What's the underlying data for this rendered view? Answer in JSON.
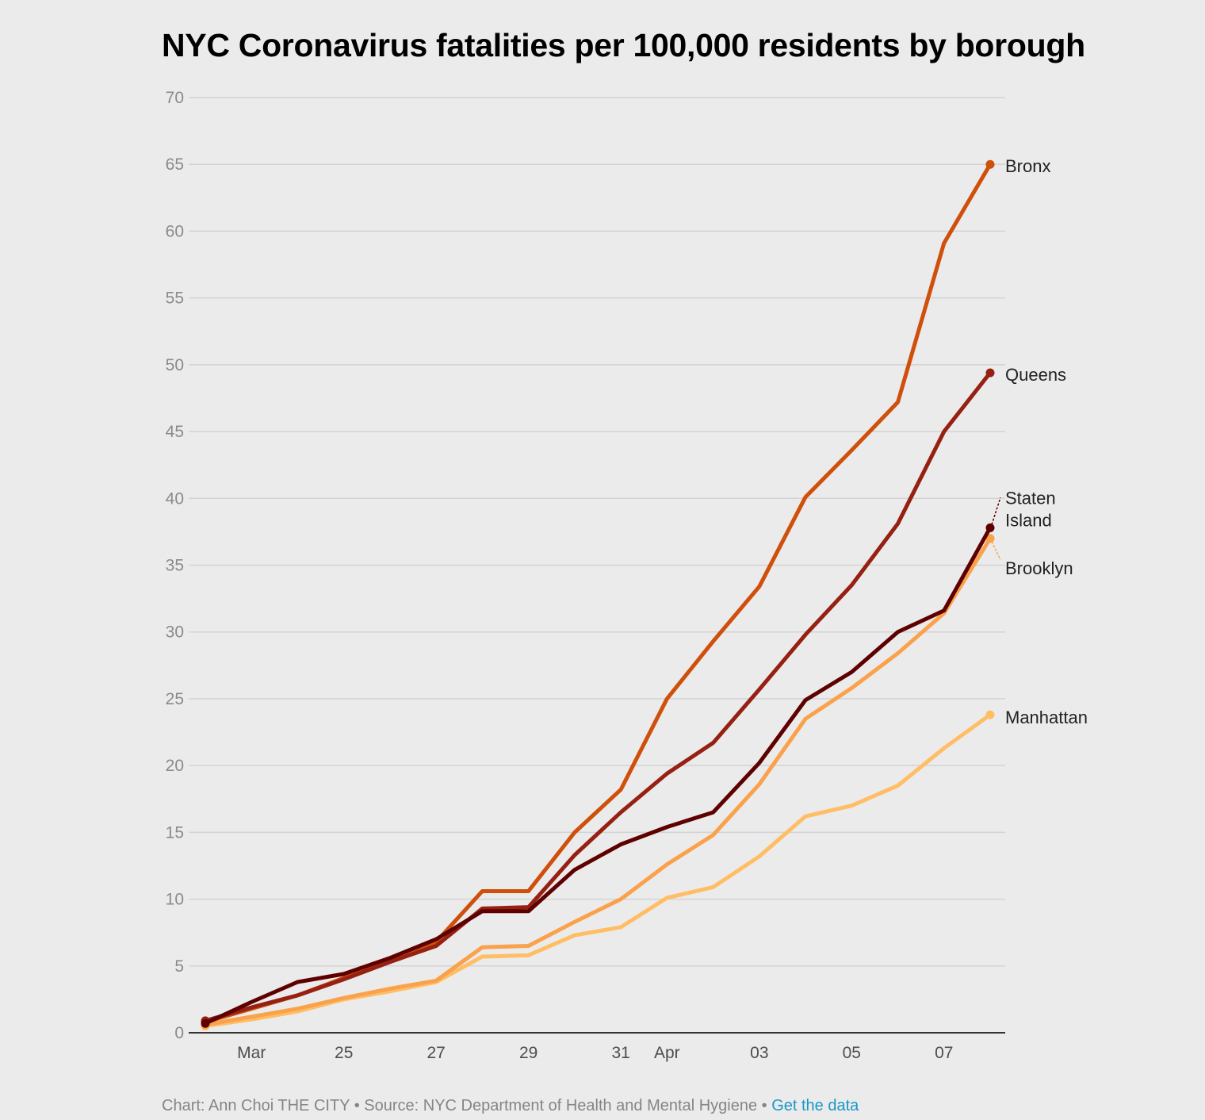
{
  "title": "NYC Coronavirus fatalities per 100,000 residents by borough",
  "footer": {
    "credit": "Chart: Ann Choi THE CITY",
    "separator": " • ",
    "source": "Source: NYC Department of Health and Mental Hygiene",
    "link_label": "Get the data"
  },
  "colors": {
    "Bronx": "#cf4f0b",
    "Queens": "#962012",
    "Staten Island": "#5e0000",
    "Brooklyn": "#faa24b",
    "Manhattan": "#ffbe66",
    "grid": "#d3d3d3",
    "axis": "#333333",
    "tick_label": "#8a8a8a",
    "link": "#1a98c6"
  },
  "chart_data": {
    "type": "line",
    "title": "NYC Coronavirus fatalities per 100,000 residents by borough",
    "xlabel": "",
    "ylabel": "",
    "ylim": [
      0,
      70
    ],
    "y_ticks": [
      0,
      5,
      10,
      15,
      20,
      25,
      30,
      35,
      40,
      45,
      50,
      55,
      60,
      65,
      70
    ],
    "x": [
      "Mar 22",
      "Mar 23",
      "Mar 24",
      "Mar 25",
      "Mar 26",
      "Mar 27",
      "Mar 28",
      "Mar 29",
      "Mar 30",
      "Mar 31",
      "Apr 1",
      "Apr 2",
      "Apr 3",
      "Apr 4",
      "Apr 5",
      "Apr 6",
      "Apr 7",
      "Apr 8"
    ],
    "x_tick_labels": [
      {
        "x": "Mar 23",
        "label": "Mar"
      },
      {
        "x": "Mar 25",
        "label": "25"
      },
      {
        "x": "Mar 27",
        "label": "27"
      },
      {
        "x": "Mar 29",
        "label": "29"
      },
      {
        "x": "Mar 31",
        "label": "31"
      },
      {
        "x": "Apr 1",
        "label": "Apr"
      },
      {
        "x": "Apr 3",
        "label": "03"
      },
      {
        "x": "Apr 5",
        "label": "05"
      },
      {
        "x": "Apr 7",
        "label": "07"
      }
    ],
    "grid": true,
    "legend": "direct labels at line ends",
    "series": [
      {
        "name": "Bronx",
        "values": [
          0.8,
          1.8,
          2.8,
          4.1,
          5.5,
          6.8,
          10.6,
          10.6,
          15.0,
          18.2,
          25.0,
          29.3,
          33.4,
          40.1,
          43.6,
          47.2,
          59.1,
          65.0
        ]
      },
      {
        "name": "Queens",
        "values": [
          0.9,
          1.9,
          2.8,
          4.0,
          5.3,
          6.5,
          9.3,
          9.4,
          13.3,
          16.5,
          19.4,
          21.7,
          25.7,
          29.8,
          33.5,
          38.1,
          45.0,
          49.4
        ]
      },
      {
        "name": "Brooklyn",
        "values": [
          0.6,
          1.2,
          1.8,
          2.6,
          3.3,
          3.9,
          6.4,
          6.5,
          8.3,
          10.0,
          12.6,
          14.8,
          18.6,
          23.5,
          25.8,
          28.4,
          31.4,
          37.0
        ]
      },
      {
        "name": "Staten Island",
        "values": [
          0.7,
          2.3,
          3.8,
          4.4,
          5.6,
          7.0,
          9.1,
          9.1,
          12.2,
          14.1,
          15.4,
          16.5,
          20.2,
          24.9,
          27.0,
          30.0,
          31.6,
          37.8
        ]
      },
      {
        "name": "Manhattan",
        "values": [
          0.5,
          1.0,
          1.6,
          2.5,
          3.1,
          3.8,
          5.7,
          5.8,
          7.3,
          7.9,
          10.1,
          10.9,
          13.2,
          16.2,
          17.0,
          18.5,
          21.3,
          23.8
        ]
      }
    ],
    "end_labels": [
      {
        "series": "Bronx",
        "lines": [
          "Bronx"
        ]
      },
      {
        "series": "Queens",
        "lines": [
          "Queens"
        ]
      },
      {
        "series": "Staten Island",
        "lines": [
          "Staten",
          "Island"
        ]
      },
      {
        "series": "Brooklyn",
        "lines": [
          "Brooklyn"
        ]
      },
      {
        "series": "Manhattan",
        "lines": [
          "Manhattan"
        ]
      }
    ]
  }
}
